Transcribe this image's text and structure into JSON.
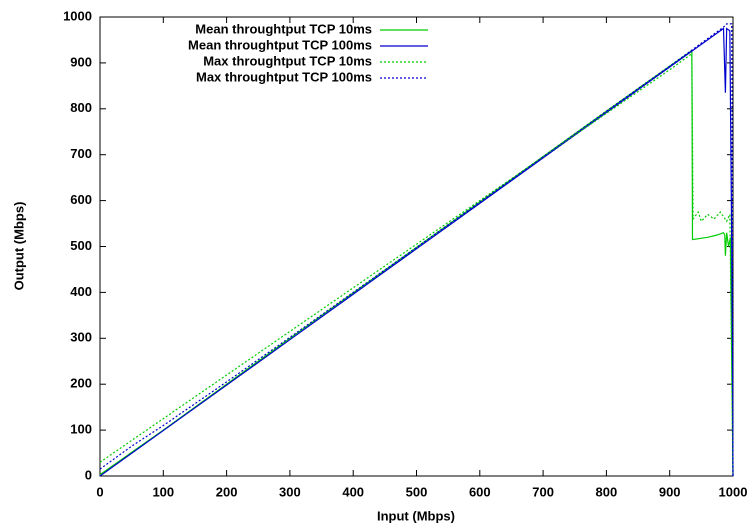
{
  "chart_data": {
    "type": "line",
    "xlabel": "Input (Mbps)",
    "ylabel": "Output (Mbps)",
    "xlim": [
      0,
      1000
    ],
    "ylim": [
      0,
      1000
    ],
    "xticks": [
      0,
      100,
      200,
      300,
      400,
      500,
      600,
      700,
      800,
      900,
      1000
    ],
    "yticks": [
      0,
      100,
      200,
      300,
      400,
      500,
      600,
      700,
      800,
      900,
      1000
    ],
    "legend": "top-left",
    "series": [
      {
        "name": "Mean throughtput TCP 10ms",
        "color": "#00cc00",
        "dash": false,
        "x": [
          0,
          100,
          200,
          300,
          400,
          500,
          600,
          700,
          800,
          900,
          935,
          936,
          960,
          975,
          985,
          987,
          988,
          990,
          993,
          996,
          1000
        ],
        "values": [
          3,
          100,
          200,
          300,
          399,
          498,
          597,
          696,
          795,
          893,
          927,
          515,
          520,
          525,
          530,
          525,
          480,
          530,
          500,
          520,
          0
        ]
      },
      {
        "name": "Mean throughtput TCP 100ms",
        "color": "#0000cc",
        "dash": false,
        "x": [
          0,
          100,
          200,
          300,
          400,
          500,
          600,
          700,
          800,
          900,
          980,
          985,
          988,
          990,
          995,
          998,
          1000
        ],
        "values": [
          0,
          99,
          198,
          297,
          396,
          495,
          594,
          693,
          792,
          891,
          970,
          975,
          835,
          975,
          970,
          500,
          0
        ]
      },
      {
        "name": "Max throughtput TCP 10ms",
        "color": "#00cc00",
        "dash": true,
        "x": [
          0,
          100,
          200,
          300,
          400,
          500,
          600,
          700,
          800,
          900,
          935,
          937,
          945,
          950,
          960,
          970,
          980,
          990,
          995,
          1000
        ],
        "values": [
          30,
          125,
          220,
          315,
          410,
          505,
          600,
          695,
          790,
          885,
          920,
          560,
          575,
          555,
          570,
          560,
          575,
          555,
          570,
          0
        ]
      },
      {
        "name": "Max throughtput TCP 100ms",
        "color": "#0000cc",
        "dash": true,
        "x": [
          0,
          50,
          100,
          200,
          300,
          400,
          500,
          600,
          700,
          800,
          900,
          985,
          990,
          995,
          998,
          1000
        ],
        "values": [
          15,
          65,
          110,
          205,
          302,
          400,
          498,
          597,
          695,
          795,
          893,
          978,
          985,
          985,
          985,
          0
        ]
      }
    ]
  }
}
